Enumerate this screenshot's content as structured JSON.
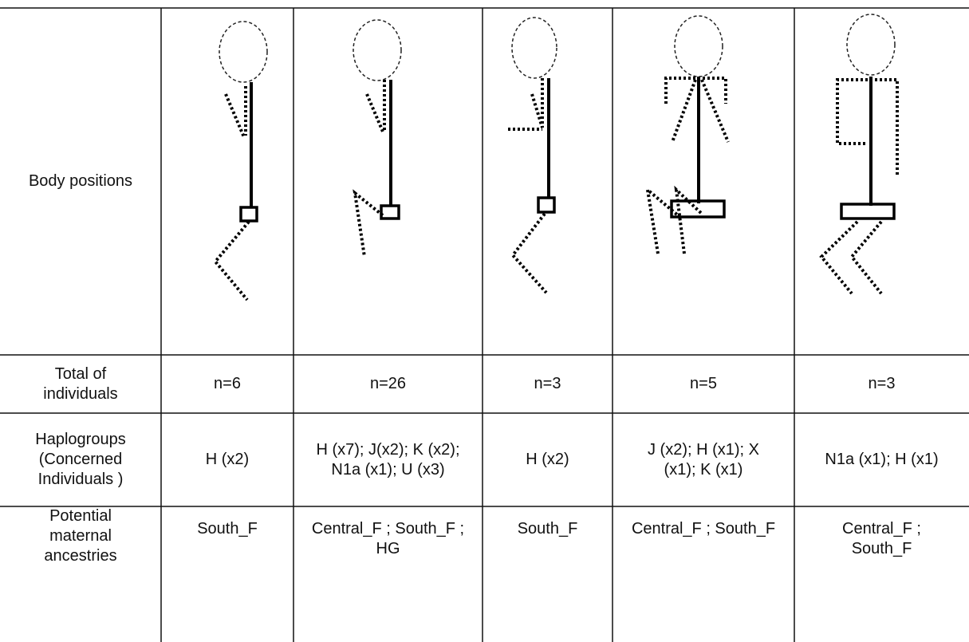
{
  "table": {
    "rows": [
      [
        "Body positions"
      ],
      [
        "Total of individuals",
        "n=6",
        "n=26",
        "n=3",
        "n=5",
        "n=3"
      ],
      [
        "Haplogroups (Concerned Individuals )",
        "H (x2)",
        "H (x7); J(x2); K (x2); N1a (x1); U (x3)",
        "H (x2)",
        "J (x2); H (x1); X (x1); K (x1)",
        "N1a (x1); H (x1)"
      ],
      [
        "Potential maternal ancestries",
        "South_F",
        "Central_F ; South_F ; HG",
        "South_F",
        "Central_F ; South_F",
        "Central_F ; South_F"
      ]
    ]
  }
}
